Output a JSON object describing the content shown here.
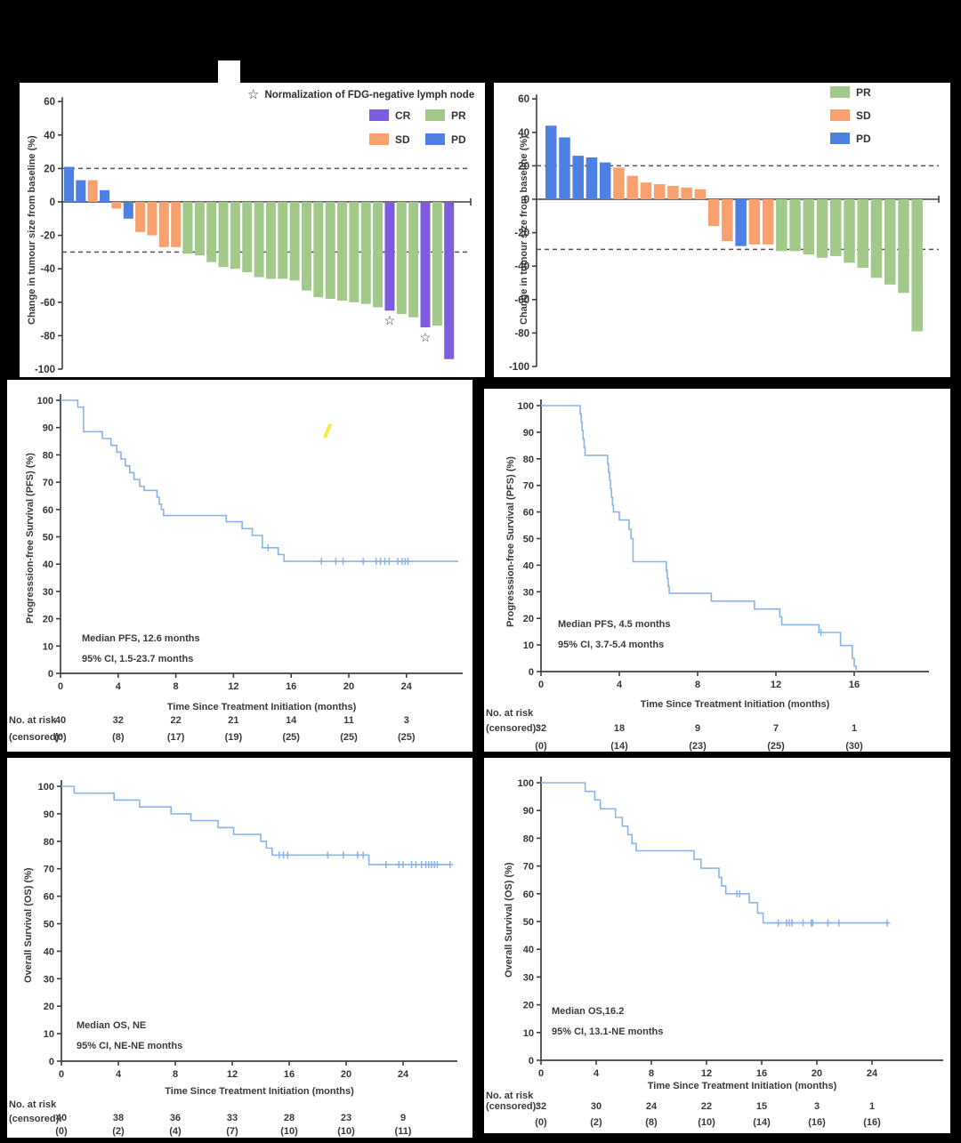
{
  "colors": {
    "cr_purple": "#7d5ce0",
    "pr_green": "#a2c98a",
    "sd_orange": "#f8a06e",
    "pd_blue": "#4d80e2",
    "km_line": "#8ab5ea",
    "axis": "#3f3f3f",
    "text": "#353535",
    "reference_dash": "#555555",
    "highlight_yellow": "#f6ee3a",
    "panel_bg": "#ffffff",
    "page_bg": "#000000"
  },
  "chart_data": [
    {
      "id": "waterfall_a",
      "type": "bar",
      "ylabel": "Change in tumour size from baseline (%)",
      "ylim": [
        -100,
        60
      ],
      "yticks": [
        60,
        40,
        20,
        0,
        -20,
        -40,
        -60,
        -80,
        -100
      ],
      "reference_lines": [
        20,
        -30
      ],
      "star_note": "Normalization of FDG-negative lymph node",
      "legend": [
        {
          "label": "CR",
          "response": "CR"
        },
        {
          "label": "PR",
          "response": "PR"
        },
        {
          "label": "SD",
          "response": "SD"
        },
        {
          "label": "PD",
          "response": "PD"
        }
      ],
      "bars": [
        {
          "value": 21,
          "response": "PD"
        },
        {
          "value": 13,
          "response": "PD"
        },
        {
          "value": 13,
          "response": "SD"
        },
        {
          "value": 7,
          "response": "PD"
        },
        {
          "value": -4,
          "response": "SD"
        },
        {
          "value": -10,
          "response": "PD"
        },
        {
          "value": -18,
          "response": "SD"
        },
        {
          "value": -20,
          "response": "SD"
        },
        {
          "value": -27,
          "response": "SD"
        },
        {
          "value": -27,
          "response": "SD"
        },
        {
          "value": -31,
          "response": "PR"
        },
        {
          "value": -32,
          "response": "PR"
        },
        {
          "value": -36,
          "response": "PR"
        },
        {
          "value": -39,
          "response": "PR"
        },
        {
          "value": -40,
          "response": "PR"
        },
        {
          "value": -42,
          "response": "PR"
        },
        {
          "value": -45,
          "response": "PR"
        },
        {
          "value": -46,
          "response": "PR"
        },
        {
          "value": -46,
          "response": "PR"
        },
        {
          "value": -47,
          "response": "PR"
        },
        {
          "value": -53,
          "response": "PR"
        },
        {
          "value": -57,
          "response": "PR"
        },
        {
          "value": -58,
          "response": "PR"
        },
        {
          "value": -59,
          "response": "PR"
        },
        {
          "value": -60,
          "response": "PR"
        },
        {
          "value": -61,
          "response": "PR"
        },
        {
          "value": -63,
          "response": "PR"
        },
        {
          "value": -65,
          "response": "CR",
          "star": true
        },
        {
          "value": -67,
          "response": "PR"
        },
        {
          "value": -69,
          "response": "PR"
        },
        {
          "value": -75,
          "response": "CR",
          "star": true
        },
        {
          "value": -74,
          "response": "PR"
        },
        {
          "value": -94,
          "response": "CR"
        }
      ]
    },
    {
      "id": "waterfall_b",
      "type": "bar",
      "ylabel": "Change in tumour size from baseline (%)",
      "ylim": [
        -100,
        60
      ],
      "yticks": [
        60,
        40,
        20,
        0,
        -20,
        -40,
        -60,
        -80,
        -100
      ],
      "reference_lines": [
        20,
        -30
      ],
      "legend": [
        {
          "label": "PR",
          "response": "PR"
        },
        {
          "label": "SD",
          "response": "SD"
        },
        {
          "label": "PD",
          "response": "PD"
        }
      ],
      "bars": [
        {
          "value": 44,
          "response": "PD"
        },
        {
          "value": 37,
          "response": "PD"
        },
        {
          "value": 26,
          "response": "PD"
        },
        {
          "value": 25,
          "response": "PD"
        },
        {
          "value": 22,
          "response": "PD"
        },
        {
          "value": 19,
          "response": "SD"
        },
        {
          "value": 14,
          "response": "SD"
        },
        {
          "value": 10,
          "response": "SD"
        },
        {
          "value": 9,
          "response": "SD"
        },
        {
          "value": 8,
          "response": "SD"
        },
        {
          "value": 7,
          "response": "SD"
        },
        {
          "value": 6,
          "response": "SD"
        },
        {
          "value": -16,
          "response": "SD"
        },
        {
          "value": -25,
          "response": "SD"
        },
        {
          "value": -28,
          "response": "PD"
        },
        {
          "value": -27,
          "response": "SD"
        },
        {
          "value": -27,
          "response": "SD"
        },
        {
          "value": -31,
          "response": "PR"
        },
        {
          "value": -31,
          "response": "PR"
        },
        {
          "value": -33,
          "response": "PR"
        },
        {
          "value": -35,
          "response": "PR"
        },
        {
          "value": -34,
          "response": "PR"
        },
        {
          "value": -38,
          "response": "PR"
        },
        {
          "value": -41,
          "response": "PR"
        },
        {
          "value": -47,
          "response": "PR"
        },
        {
          "value": -51,
          "response": "PR"
        },
        {
          "value": -56,
          "response": "PR"
        },
        {
          "value": -79,
          "response": "PR"
        }
      ]
    },
    {
      "id": "pfs_a",
      "type": "line",
      "ylabel": "Progresssion-free Survival (PFS) (%)",
      "xlabel": "Time Since Treatment Initiation (months)",
      "ylim": [
        0,
        100
      ],
      "yticks": [
        100,
        90,
        80,
        70,
        60,
        50,
        40,
        30,
        20,
        10,
        0
      ],
      "xticks": [
        0,
        4,
        8,
        12,
        16,
        20,
        24
      ],
      "xlim": [
        0,
        28
      ],
      "annotations": [
        "Median PFS, 12.6 months",
        "95% CI, 1.5-23.7 months"
      ],
      "risk_header": [
        "No. at risk",
        "(censored):"
      ],
      "risk_n": [
        "40",
        "32",
        "22",
        "21",
        "14",
        "11",
        "3"
      ],
      "risk_c": [
        "(0)",
        "(8)",
        "(17)",
        "(19)",
        "(25)",
        "(25)",
        "(25)"
      ],
      "steps": [
        [
          0,
          100
        ],
        [
          1.2,
          97.5
        ],
        [
          1.6,
          88.5
        ],
        [
          2.9,
          86
        ],
        [
          3.5,
          83.5
        ],
        [
          3.9,
          81
        ],
        [
          4.2,
          78.5
        ],
        [
          4.5,
          76
        ],
        [
          4.8,
          73.5
        ],
        [
          5.1,
          71
        ],
        [
          5.5,
          68.5
        ],
        [
          5.8,
          67
        ],
        [
          6.7,
          64.5
        ],
        [
          6.85,
          62
        ],
        [
          7.0,
          60
        ],
        [
          7.15,
          57.8
        ],
        [
          11.5,
          55.5
        ],
        [
          12.6,
          53
        ],
        [
          13.3,
          50.5
        ],
        [
          14.0,
          46
        ],
        [
          15.1,
          43.5
        ],
        [
          15.5,
          41
        ],
        [
          27.6,
          41
        ]
      ],
      "censors": [
        [
          14.4,
          46
        ],
        [
          18.1,
          41
        ],
        [
          19.1,
          41
        ],
        [
          19.6,
          41
        ],
        [
          21.0,
          41
        ],
        [
          21.9,
          41
        ],
        [
          22.2,
          41
        ],
        [
          22.5,
          41
        ],
        [
          22.8,
          41
        ],
        [
          23.4,
          41
        ],
        [
          23.7,
          41
        ],
        [
          23.9,
          41
        ],
        [
          24.1,
          41
        ]
      ]
    },
    {
      "id": "pfs_b",
      "type": "line",
      "ylabel": "Progresssion-free Survival (PFS) (%)",
      "xlabel": "Time Since Treatment Initiation (months)",
      "ylim": [
        0,
        100
      ],
      "yticks": [
        100,
        90,
        80,
        70,
        60,
        50,
        40,
        30,
        20,
        10,
        0
      ],
      "xticks": [
        0,
        4,
        8,
        12,
        16
      ],
      "xlim": [
        0,
        19.5
      ],
      "annotations": [
        "Median PFS, 4.5 months",
        "95% CI, 3.7-5.4 months"
      ],
      "risk_header": [
        "No. at risk",
        "(censored):"
      ],
      "risk_n": [
        "32",
        "18",
        "9",
        "7",
        "1"
      ],
      "risk_c": [
        "(0)",
        "(14)",
        "(23)",
        "(25)",
        "(30)"
      ],
      "steps": [
        [
          0,
          100
        ],
        [
          2.0,
          96.9
        ],
        [
          2.05,
          93.8
        ],
        [
          2.1,
          90.6
        ],
        [
          2.15,
          87.5
        ],
        [
          2.2,
          84.4
        ],
        [
          2.25,
          81.3
        ],
        [
          3.4,
          78.1
        ],
        [
          3.45,
          75
        ],
        [
          3.5,
          71.9
        ],
        [
          3.55,
          68.8
        ],
        [
          3.6,
          65.6
        ],
        [
          3.65,
          62.5
        ],
        [
          3.7,
          60
        ],
        [
          4.0,
          57
        ],
        [
          4.5,
          53.5
        ],
        [
          4.6,
          50
        ],
        [
          4.7,
          41.3
        ],
        [
          6.4,
          38
        ],
        [
          6.45,
          35
        ],
        [
          6.5,
          32
        ],
        [
          6.55,
          29.4
        ],
        [
          8.7,
          26.5
        ],
        [
          10.9,
          23.5
        ],
        [
          12.2,
          20.5
        ],
        [
          12.3,
          17.6
        ],
        [
          14.2,
          14.7
        ],
        [
          15.3,
          9.8
        ],
        [
          15.9,
          4.9
        ],
        [
          16.0,
          2
        ],
        [
          16.1,
          0
        ]
      ],
      "censors": [
        [
          14.3,
          14.7
        ]
      ]
    },
    {
      "id": "os_a",
      "type": "line",
      "ylabel": "Overall Survival (OS) (%)",
      "xlabel": "Time Since Treatment Initiation (months)",
      "ylim": [
        0,
        100
      ],
      "yticks": [
        100,
        90,
        80,
        70,
        60,
        50,
        40,
        30,
        20,
        10,
        0
      ],
      "xticks": [
        0,
        4,
        8,
        12,
        16,
        20,
        24
      ],
      "xlim": [
        0,
        27.8
      ],
      "annotations": [
        "Median OS, NE",
        "95% CI, NE-NE months"
      ],
      "risk_header": [
        "No. at risk",
        "(censored):"
      ],
      "risk_n": [
        "40",
        "38",
        "36",
        "33",
        "28",
        "23",
        "9"
      ],
      "risk_c": [
        "(0)",
        "(2)",
        "(4)",
        "(7)",
        "(10)",
        "(10)",
        "(11)"
      ],
      "steps": [
        [
          0,
          100
        ],
        [
          0.9,
          97.5
        ],
        [
          3.7,
          95
        ],
        [
          5.5,
          92.5
        ],
        [
          7.7,
          90
        ],
        [
          9.1,
          87.5
        ],
        [
          11.0,
          85
        ],
        [
          12.1,
          82.5
        ],
        [
          14.0,
          80
        ],
        [
          14.4,
          77.5
        ],
        [
          14.8,
          75
        ],
        [
          21.6,
          71.5
        ],
        [
          27.4,
          71.5
        ]
      ],
      "censors": [
        [
          15.3,
          75
        ],
        [
          15.6,
          75
        ],
        [
          15.9,
          75
        ],
        [
          18.7,
          75
        ],
        [
          19.8,
          75
        ],
        [
          20.8,
          75
        ],
        [
          21.2,
          75
        ],
        [
          22.8,
          71.5
        ],
        [
          23.7,
          71.5
        ],
        [
          24.0,
          71.5
        ],
        [
          24.6,
          71.5
        ],
        [
          24.9,
          71.5
        ],
        [
          25.3,
          71.5
        ],
        [
          25.6,
          71.5
        ],
        [
          25.8,
          71.5
        ],
        [
          26.0,
          71.5
        ],
        [
          26.2,
          71.5
        ],
        [
          26.4,
          71.5
        ],
        [
          27.3,
          71.5
        ]
      ]
    },
    {
      "id": "os_b",
      "type": "line",
      "ylabel": "Overall Survival (OS) (%)",
      "xlabel": "Time Since Treatment Initiation (months)",
      "ylim": [
        0,
        100
      ],
      "yticks": [
        100,
        90,
        80,
        70,
        60,
        50,
        40,
        30,
        20,
        10,
        0
      ],
      "xticks": [
        0,
        4,
        8,
        12,
        16,
        20,
        24
      ],
      "xlim": [
        0,
        26.5
      ],
      "annotations": [
        "Median OS,16.2",
        "95% CI, 13.1-NE months"
      ],
      "risk_header": [
        "No. at risk",
        "(censored):"
      ],
      "risk_n": [
        "32",
        "30",
        "24",
        "22",
        "15",
        "3",
        "1"
      ],
      "risk_c": [
        "(0)",
        "(2)",
        "(8)",
        "(10)",
        "(14)",
        "(16)",
        "(16)"
      ],
      "steps": [
        [
          0,
          100
        ],
        [
          3.2,
          96.9
        ],
        [
          3.9,
          93.8
        ],
        [
          4.3,
          90.6
        ],
        [
          5.4,
          87.5
        ],
        [
          5.9,
          84.4
        ],
        [
          6.3,
          81.3
        ],
        [
          6.6,
          78.1
        ],
        [
          6.9,
          75.5
        ],
        [
          11.1,
          72.4
        ],
        [
          11.6,
          69.2
        ],
        [
          12.9,
          65.9
        ],
        [
          13.1,
          62.8
        ],
        [
          13.4,
          60
        ],
        [
          15.1,
          56.8
        ],
        [
          15.7,
          53
        ],
        [
          16.1,
          49.5
        ],
        [
          25.2,
          49.5
        ]
      ],
      "censors": [
        [
          14.2,
          60
        ],
        [
          14.4,
          60
        ],
        [
          17.2,
          49.5
        ],
        [
          17.8,
          49.5
        ],
        [
          18.0,
          49.5
        ],
        [
          18.2,
          49.5
        ],
        [
          19.0,
          49.5
        ],
        [
          19.6,
          49.5
        ],
        [
          19.7,
          49.5
        ],
        [
          20.8,
          49.5
        ],
        [
          21.6,
          49.5
        ],
        [
          25.1,
          49.5
        ]
      ]
    }
  ]
}
